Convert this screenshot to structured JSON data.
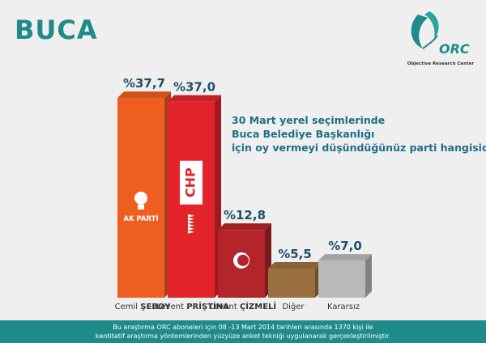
{
  "header": {
    "title": "BUCA"
  },
  "logo": {
    "wordmark": "ORC",
    "subtitle": "Objective Research Center",
    "icon": "leaf-swirl-icon",
    "color": "#1f8a8a"
  },
  "question": {
    "lines": [
      "30 Mart yerel seçimlerinde",
      "Buca Belediye Başkanlığı",
      "için oy vermeyi düşündüğünüz parti hangisidir?"
    ]
  },
  "footer": {
    "lines": [
      "Bu araştırma ORC aboneleri için 08 -13 Mart 2014 tarihleri arasında  1370 kişi ile",
      "kantitatif araştırma yöntemlerinden yüzyüze anket tekniği  uygulanarak gerçekleştirilmiştir."
    ]
  },
  "colors": {
    "title": "#1f8a8a",
    "akp": "#ee5e20",
    "chp": "#e3242b",
    "mhp": "#b3252a",
    "diger": "#9b7040",
    "kararsiz": "#b9b9b9"
  },
  "chart_data": {
    "type": "bar",
    "categories": [
      {
        "first": "Cemil",
        "last": "ŞEBOY",
        "party": "AK PARTİ"
      },
      {
        "first": "Levent",
        "last": "PRİŞTİNA",
        "party": "CHP"
      },
      {
        "first": "Levent",
        "last": "ÇİZMELİ",
        "party": "MHP"
      },
      {
        "first": "Diğer",
        "last": "",
        "party": ""
      },
      {
        "first": "Kararsız",
        "last": "",
        "party": ""
      }
    ],
    "values": [
      37.7,
      37.0,
      12.8,
      5.5,
      7.0
    ],
    "value_labels": [
      "%37,7",
      "%37,0",
      "%12,8",
      "%5,5",
      "%7,0"
    ],
    "party_marks": [
      "AK PARTİ",
      "CHP",
      "",
      "",
      ""
    ],
    "colors": [
      "#ee5e20",
      "#e3242b",
      "#b3252a",
      "#9b7040",
      "#b9b9b9"
    ],
    "ylim": [
      0,
      40
    ],
    "grid": false,
    "legend": "none"
  }
}
